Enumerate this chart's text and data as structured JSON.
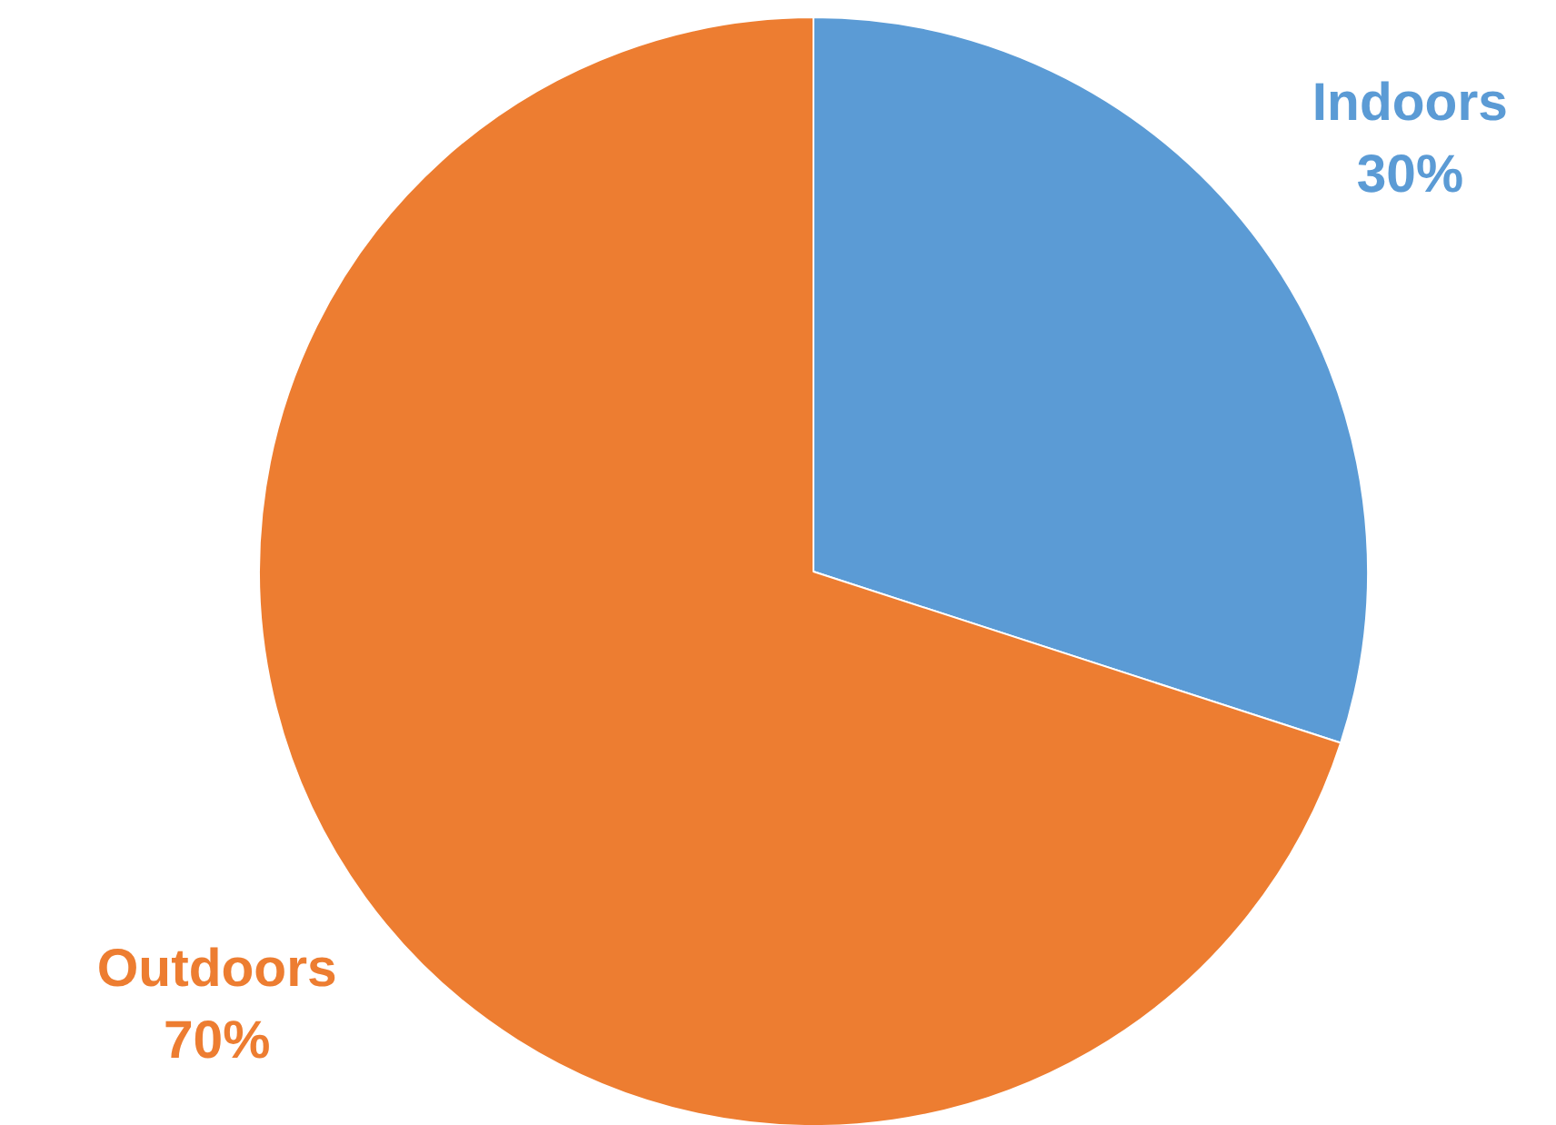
{
  "chart_data": {
    "type": "pie",
    "categories": [
      "Indoors",
      "Outdoors"
    ],
    "values": [
      30,
      70
    ],
    "colors": [
      "#5b9bd5",
      "#ed7d31"
    ],
    "value_labels": [
      "30%",
      "70%"
    ],
    "legend": false
  }
}
